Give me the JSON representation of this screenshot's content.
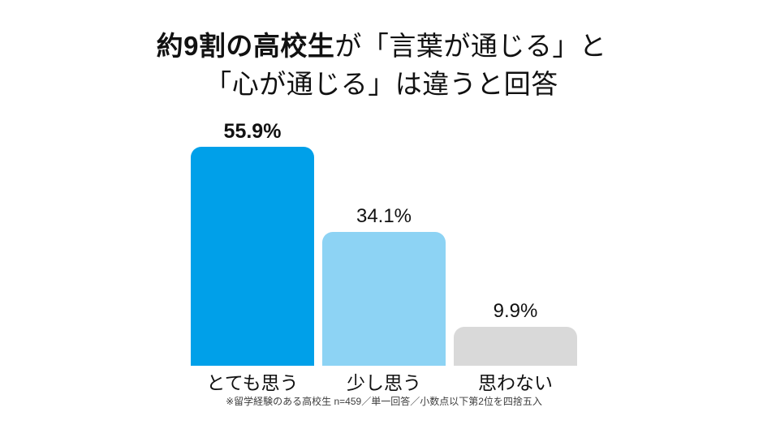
{
  "title": {
    "line1_bold": "約9割の高校生",
    "line1_rest": "が「言葉が通じる」と",
    "line2": "「心が通じる」は違うと回答"
  },
  "chart_data": {
    "type": "bar",
    "title": "約9割の高校生が「言葉が通じる」と「心が通じる」は違うと回答",
    "categories": [
      "とても思う",
      "少し思う",
      "思わない"
    ],
    "values": [
      55.9,
      34.1,
      9.9
    ],
    "value_labels": [
      "55.9%",
      "34.1%",
      "9.9%"
    ],
    "value_label_bold": [
      true,
      false,
      false
    ],
    "bar_colors": [
      "#00A0E9",
      "#8DD3F4",
      "#D9D9D9"
    ],
    "xlabel": "",
    "ylabel": "",
    "ylim": [
      0,
      60
    ],
    "grid": false,
    "legend": false
  },
  "footnote": "※留学経験のある高校生 n=459／単一回答／小数点以下第2位を四捨五入"
}
